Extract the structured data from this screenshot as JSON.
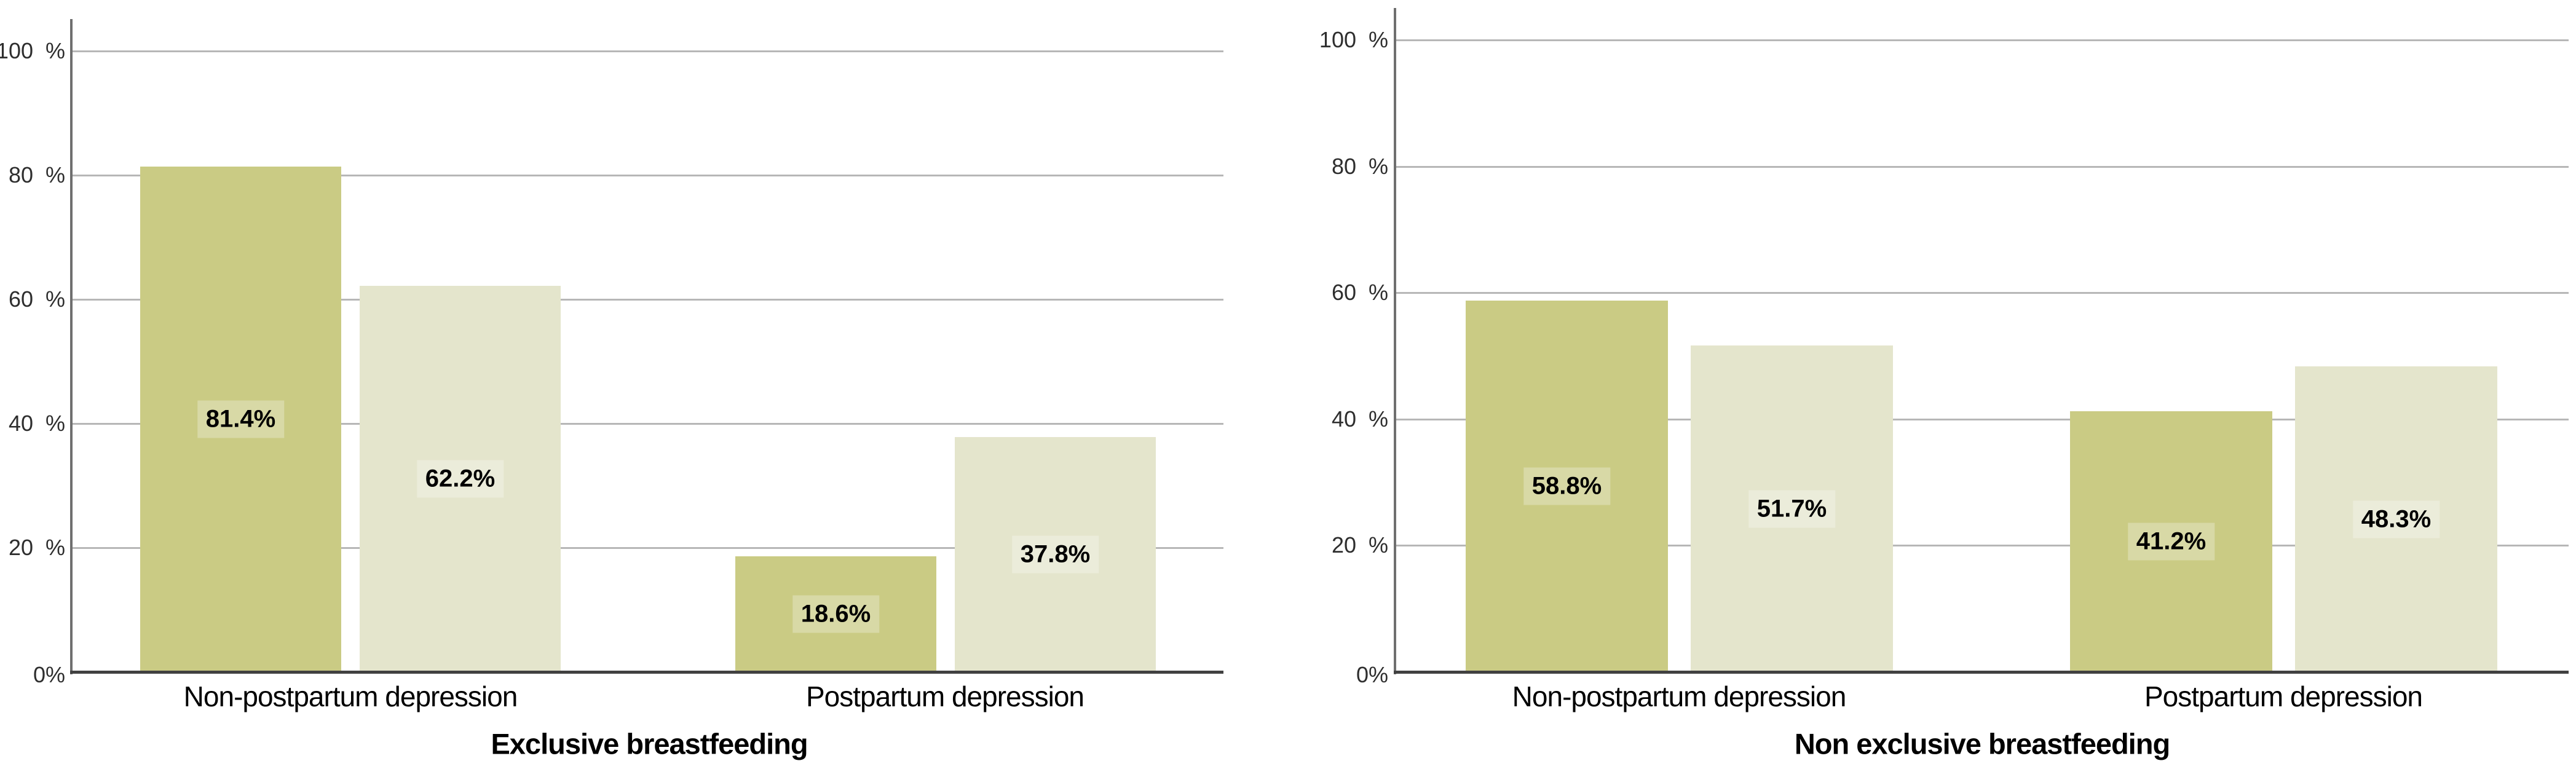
{
  "figure": {
    "background": "#ffffff"
  },
  "colors": {
    "bar_dark": "#cacb84",
    "bar_light": "#e4e5cc",
    "gridline": "#b7b7b7",
    "y_axis_line": "#6f6f6f",
    "x_axis_line": "#414141",
    "tick_text": "#2e2e2e",
    "label_text": "#000000"
  },
  "chart_data": [
    {
      "id": "exclusive-breastfeeding",
      "type": "bar",
      "title": "Exclusive breastfeeding",
      "categories": [
        "Non-postpartum depression",
        "Postpartum depression"
      ],
      "series": [
        {
          "name": "series-dark",
          "color": "#cacb84",
          "values": [
            81.4,
            18.6
          ]
        },
        {
          "name": "series-light",
          "color": "#e4e5cc",
          "values": [
            62.2,
            37.8
          ]
        }
      ],
      "bar_labels": [
        [
          "81.4%",
          "18.6%"
        ],
        [
          "62.2%",
          "37.8%"
        ]
      ],
      "ylim": [
        0,
        100
      ],
      "ytick_values": [
        100,
        80,
        60,
        40,
        20,
        0
      ],
      "ytick_labels": [
        "100 %",
        "80 %",
        "60 %",
        "40 %",
        "20 %",
        "0%"
      ],
      "grid": true,
      "legend": "none"
    },
    {
      "id": "non-exclusive-breastfeeding",
      "type": "bar",
      "title": "Non exclusive breastfeeding",
      "categories": [
        "Non-postpartum depression",
        "Postpartum depression"
      ],
      "series": [
        {
          "name": "series-dark",
          "color": "#cacb84",
          "values": [
            58.8,
            41.2
          ]
        },
        {
          "name": "series-light",
          "color": "#e4e5cc",
          "values": [
            51.7,
            48.3
          ]
        }
      ],
      "bar_labels": [
        [
          "58.8%",
          "41.2%"
        ],
        [
          "51.7%",
          "48.3%"
        ]
      ],
      "ylim": [
        0,
        100
      ],
      "ytick_values": [
        100,
        80,
        60,
        40,
        20,
        0
      ],
      "ytick_labels": [
        "100 %",
        "80 %",
        "60 %",
        "40 %",
        "20 %",
        "0%"
      ],
      "grid": true,
      "legend": "none"
    }
  ]
}
